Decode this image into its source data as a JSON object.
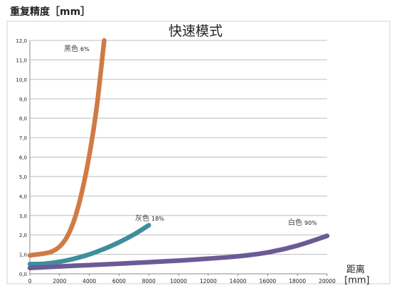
{
  "chart_data": {
    "type": "line",
    "title": "快速模式",
    "ylabel": "重复精度［mm］",
    "xlabel_line1": "距离",
    "xlabel_line2": "[mm]",
    "xlim": [
      0,
      20000
    ],
    "ylim": [
      0,
      12
    ],
    "x_ticks": [
      "0",
      "2000",
      "4000",
      "6000",
      "8000",
      "10000",
      "12000",
      "14000",
      "16000",
      "18000",
      "20000"
    ],
    "y_ticks": [
      "0,0",
      "1,0",
      "2,0",
      "3,0",
      "4,0",
      "5,0",
      "6,0",
      "7,0",
      "8,0",
      "9,0",
      "10,0",
      "11,0",
      "12,0"
    ],
    "grid": "horizontal",
    "series": [
      {
        "name": "黑色",
        "pct": "6%",
        "color": "#d07b45",
        "points": [
          [
            0,
            0.95
          ],
          [
            500,
            1.0
          ],
          [
            1000,
            1.05
          ],
          [
            1500,
            1.15
          ],
          [
            2000,
            1.4
          ],
          [
            2500,
            1.9
          ],
          [
            3000,
            2.8
          ],
          [
            3500,
            4.2
          ],
          [
            4000,
            6.1
          ],
          [
            4500,
            8.6
          ],
          [
            5000,
            12.0
          ]
        ]
      },
      {
        "name": "灰色",
        "pct": "18%",
        "color": "#3f8e9c",
        "points": [
          [
            0,
            0.5
          ],
          [
            1000,
            0.52
          ],
          [
            2000,
            0.62
          ],
          [
            3000,
            0.78
          ],
          [
            4000,
            1.0
          ],
          [
            5000,
            1.28
          ],
          [
            6000,
            1.62
          ],
          [
            7000,
            2.02
          ],
          [
            8000,
            2.5
          ]
        ]
      },
      {
        "name": "白色",
        "pct": "90%",
        "color": "#6a5a95",
        "points": [
          [
            0,
            0.3
          ],
          [
            2000,
            0.38
          ],
          [
            4000,
            0.45
          ],
          [
            6000,
            0.52
          ],
          [
            8000,
            0.6
          ],
          [
            10000,
            0.68
          ],
          [
            12000,
            0.78
          ],
          [
            14000,
            0.9
          ],
          [
            16000,
            1.1
          ],
          [
            18000,
            1.45
          ],
          [
            20000,
            1.95
          ]
        ]
      }
    ]
  }
}
